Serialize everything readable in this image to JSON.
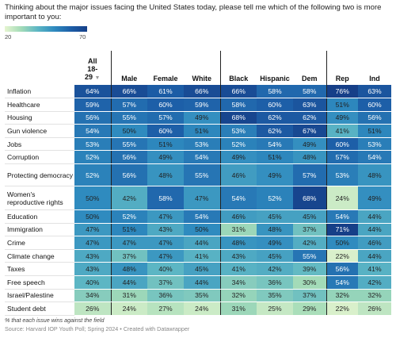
{
  "title": "Thinking about the major issues facing the United States today, please tell me which of the following two is more important to you:",
  "legend": {
    "min_label": "20",
    "max_label": "70"
  },
  "chart_data": {
    "type": "heatmap",
    "columns": [
      "All 18-29",
      "Male",
      "Female",
      "White",
      "Black",
      "Hispanic",
      "Dem",
      "Rep",
      "Ind"
    ],
    "rows": [
      {
        "label": "Inflation",
        "values": [
          64,
          66,
          61,
          66,
          66,
          58,
          58,
          76,
          63
        ]
      },
      {
        "label": "Healthcare",
        "values": [
          59,
          57,
          60,
          59,
          58,
          60,
          63,
          51,
          60
        ]
      },
      {
        "label": "Housing",
        "values": [
          56,
          55,
          57,
          49,
          68,
          62,
          62,
          49,
          56
        ]
      },
      {
        "label": "Gun violence",
        "values": [
          54,
          50,
          60,
          51,
          53,
          62,
          67,
          41,
          51
        ]
      },
      {
        "label": "Jobs",
        "values": [
          53,
          55,
          51,
          53,
          52,
          54,
          49,
          60,
          53
        ]
      },
      {
        "label": "Corruption",
        "values": [
          52,
          56,
          49,
          54,
          49,
          51,
          48,
          57,
          54
        ]
      },
      {
        "label": "Protecting democracy",
        "values": [
          52,
          56,
          48,
          55,
          46,
          49,
          57,
          53,
          48
        ]
      },
      {
        "label": "Women's reproductive rights",
        "values": [
          50,
          42,
          58,
          47,
          54,
          52,
          68,
          24,
          49
        ]
      },
      {
        "label": "Education",
        "values": [
          50,
          52,
          47,
          54,
          46,
          45,
          45,
          54,
          44
        ]
      },
      {
        "label": "Immigration",
        "values": [
          47,
          51,
          43,
          50,
          31,
          48,
          37,
          71,
          44
        ]
      },
      {
        "label": "Crime",
        "values": [
          47,
          47,
          47,
          44,
          48,
          49,
          42,
          50,
          46
        ]
      },
      {
        "label": "Climate change",
        "values": [
          43,
          37,
          47,
          41,
          43,
          45,
          55,
          22,
          44
        ]
      },
      {
        "label": "Taxes",
        "values": [
          43,
          48,
          40,
          45,
          41,
          42,
          39,
          56,
          41
        ]
      },
      {
        "label": "Free speech",
        "values": [
          40,
          44,
          37,
          44,
          34,
          36,
          30,
          54,
          42
        ]
      },
      {
        "label": "Israel/Palestine",
        "values": [
          34,
          31,
          36,
          35,
          32,
          35,
          37,
          32,
          32
        ]
      },
      {
        "label": "Student debt",
        "values": [
          26,
          24,
          27,
          24,
          31,
          25,
          29,
          22,
          26
        ]
      }
    ],
    "value_suffix": "%",
    "color_scale": {
      "min": 20,
      "max": 70,
      "colors": [
        "#e6f5d0",
        "#a3dbb8",
        "#5cb6c4",
        "#2f8bbf",
        "#1d5fa8",
        "#163f88"
      ]
    }
  },
  "note": "% that each issue wins against the field",
  "source": "Source: Harvard IOP Youth Poll; Spring 2024 • Created with Datawrapper"
}
